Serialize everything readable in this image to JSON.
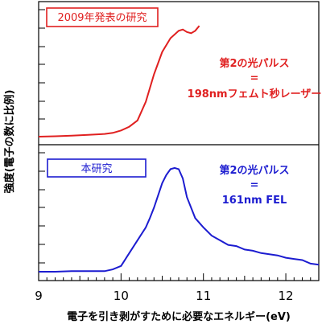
{
  "chart_data": {
    "type": "line",
    "xlabel": "電子を引き剥がすために必要なエネルギー(eV)",
    "ylabel": "強度(電子の数に比例)",
    "xlim": [
      9,
      12.4
    ],
    "x_ticks": [
      "9",
      "10",
      "11",
      "12"
    ],
    "grid": false,
    "panels": [
      {
        "name": "2009年発表の研究",
        "color": "#e02020",
        "box_color": "#e02020",
        "annotation": [
          "第2の光パルス",
          "=",
          "198nmフェムト秒レーザー"
        ],
        "ylim": [
          0,
          1
        ],
        "x": [
          9.0,
          9.2,
          9.4,
          9.6,
          9.8,
          9.9,
          10.0,
          10.1,
          10.2,
          10.3,
          10.4,
          10.5,
          10.6,
          10.7,
          10.75,
          10.8,
          10.85,
          10.9,
          10.95
        ],
        "y": [
          0.0,
          0.003,
          0.008,
          0.014,
          0.022,
          0.03,
          0.05,
          0.08,
          0.13,
          0.28,
          0.5,
          0.68,
          0.79,
          0.85,
          0.86,
          0.84,
          0.83,
          0.85,
          0.89
        ]
      },
      {
        "name": "本研究",
        "color": "#1c1cd0",
        "box_color": "#1c1cd0",
        "annotation": [
          "第2の光パルス",
          "=",
          "161nm FEL"
        ],
        "ylim": [
          0,
          1
        ],
        "x": [
          9.0,
          9.2,
          9.4,
          9.6,
          9.8,
          9.9,
          10.0,
          10.1,
          10.2,
          10.3,
          10.35,
          10.4,
          10.5,
          10.55,
          10.6,
          10.65,
          10.7,
          10.75,
          10.8,
          10.9,
          11.0,
          11.1,
          11.2,
          11.3,
          11.4,
          11.5,
          11.6,
          11.7,
          11.8,
          11.9,
          12.0,
          12.1,
          12.2,
          12.3,
          12.4
        ],
        "y": [
          0.0,
          0.0,
          0.005,
          0.005,
          0.005,
          0.02,
          0.05,
          0.16,
          0.27,
          0.38,
          0.46,
          0.55,
          0.76,
          0.83,
          0.88,
          0.89,
          0.88,
          0.8,
          0.64,
          0.46,
          0.38,
          0.31,
          0.27,
          0.23,
          0.22,
          0.19,
          0.18,
          0.16,
          0.15,
          0.14,
          0.12,
          0.11,
          0.1,
          0.07,
          0.06
        ]
      }
    ]
  }
}
